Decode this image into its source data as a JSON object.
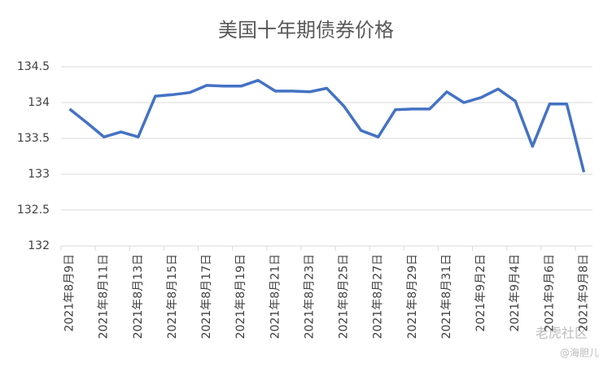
{
  "chart_data": {
    "type": "line",
    "title": "美国十年期债券价格",
    "categories": [
      "2021年8月9日",
      null,
      "2021年8月11日",
      null,
      "2021年8月13日",
      null,
      "2021年8月15日",
      null,
      "2021年8月17日",
      null,
      "2021年8月19日",
      null,
      "2021年8月21日",
      null,
      "2021年8月23日",
      null,
      "2021年8月25日",
      null,
      "2021年8月27日",
      null,
      "2021年8月29日",
      null,
      "2021年8月31日",
      null,
      "2021年9月2日",
      null,
      "2021年9月4日",
      null,
      "2021年9月6日",
      null,
      "2021年9月8日"
    ],
    "series": [
      {
        "color": "#4472c4",
        "values": [
          133.91,
          133.72,
          133.52,
          133.59,
          133.52,
          134.09,
          134.11,
          134.14,
          134.24,
          134.23,
          134.23,
          134.31,
          134.16,
          134.16,
          134.15,
          134.2,
          133.95,
          133.61,
          133.52,
          133.9,
          133.91,
          133.91,
          134.15,
          134.0,
          134.07,
          134.19,
          134.02,
          133.39,
          133.98,
          133.98,
          133.03
        ]
      }
    ],
    "ylim": [
      132,
      134.5
    ],
    "yticks": [
      132,
      132.5,
      133,
      133.5,
      134,
      134.5
    ],
    "grid": true
  },
  "watermark": {
    "brand": "老虎社区",
    "author": "@海胆儿"
  }
}
